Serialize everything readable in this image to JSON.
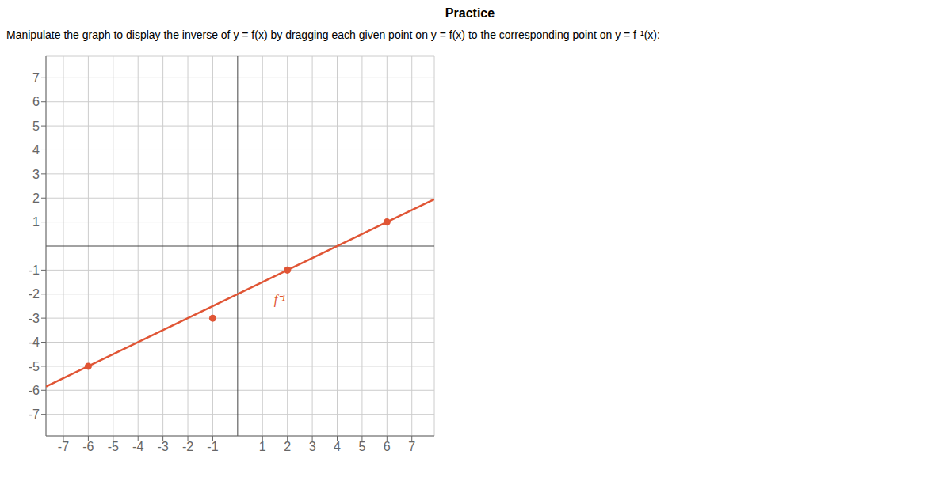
{
  "chart_data": {
    "type": "scatter",
    "title": "Practice",
    "subtitle": "Manipulate the graph to display the inverse of y = f(x) by dragging each given point on y = f(x) to the corresponding point on y = f⁻¹(x):",
    "xlim": [
      -7.7,
      7.9
    ],
    "ylim": [
      -7.9,
      7.9
    ],
    "xticks": [
      -7,
      -6,
      -5,
      -4,
      -3,
      -2,
      -1,
      1,
      2,
      3,
      4,
      5,
      6,
      7
    ],
    "yticks": [
      -7,
      -6,
      -5,
      -4,
      -3,
      -2,
      -1,
      1,
      2,
      3,
      4,
      5,
      6,
      7
    ],
    "grid": true,
    "series": [
      {
        "type": "line",
        "x": [
          -7.7,
          7.9
        ],
        "values": [
          -5.85,
          1.95
        ],
        "color": "#e05535",
        "line_style": "solid"
      },
      {
        "type": "scatter",
        "x": [
          -6,
          -1,
          2,
          6
        ],
        "values": [
          -5,
          -3,
          -1,
          1
        ],
        "color": "#e05535",
        "marker": "circle"
      }
    ],
    "annotations": [
      {
        "text": "f⁻¹",
        "x": 1.3,
        "y": -2.2,
        "color": "#e05535"
      }
    ]
  }
}
